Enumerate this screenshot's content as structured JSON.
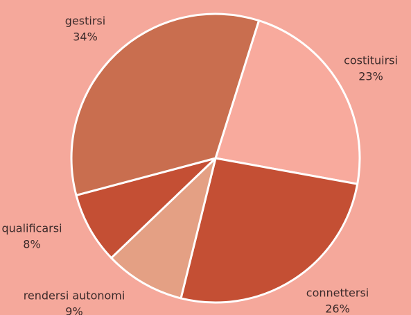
{
  "chart_data": {
    "type": "pie",
    "categories": [
      "costituirsi",
      "connettersi",
      "rendersi autonomi",
      "qualificarsi",
      "gestirsi"
    ],
    "values": [
      23,
      26,
      9,
      8,
      34
    ],
    "value_labels": [
      "23%",
      "26%",
      "9%",
      "8%",
      "34%"
    ],
    "colors": [
      "#f8aa9d",
      "#c44f34",
      "#e4a084",
      "#c44f34",
      "#c96e4f"
    ]
  }
}
